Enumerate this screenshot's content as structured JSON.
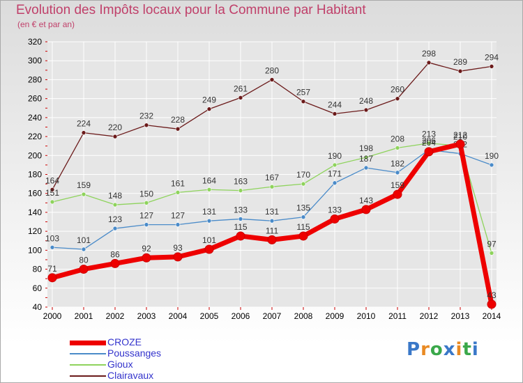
{
  "title": "Evolution des Impôts locaux pour la Commune par Habitant",
  "subtitle": "(en € et par an)",
  "logo": {
    "text": "Proxiti",
    "colors": [
      "#3a78c8",
      "#e98a23",
      "#3aa84a",
      "#3a78c8",
      "#e98a23",
      "#3aa84a",
      "#3a78c8"
    ]
  },
  "colors": {
    "title": "#c0406a",
    "grid": "#ffffff",
    "axis_text": "#000000",
    "legend_text": "#3333cc"
  },
  "chart_data": {
    "type": "line",
    "x": [
      "2000",
      "2001",
      "2002",
      "2003",
      "2004",
      "2005",
      "2006",
      "2007",
      "2008",
      "2009",
      "2010",
      "2011",
      "2012",
      "2013",
      "2014"
    ],
    "ylim": [
      40,
      320
    ],
    "yticks": [
      40,
      60,
      80,
      100,
      120,
      140,
      160,
      180,
      200,
      220,
      240,
      260,
      280,
      300,
      320
    ],
    "grid": true,
    "legend_position": "bottom-left",
    "series": [
      {
        "name": "Clairavaux",
        "color": "#6b1a1a",
        "values": [
          164,
          224,
          220,
          232,
          228,
          249,
          261,
          280,
          257,
          244,
          248,
          260,
          298,
          289,
          294
        ],
        "labels": [
          "164",
          "224",
          "220",
          "232",
          "228",
          "249",
          "261",
          "280",
          "257",
          "244",
          "248",
          "260",
          "298",
          "289",
          "294"
        ]
      },
      {
        "name": "Gioux",
        "color": "#8ed35c",
        "values": [
          151,
          159,
          148,
          150,
          161,
          164,
          163,
          167,
          170,
          190,
          198,
          208,
          213,
          210,
          97
        ],
        "labels": [
          "151",
          "159",
          "148",
          "150",
          "161",
          "164",
          "163",
          "167",
          "170",
          "190",
          "198",
          "208",
          "213",
          "210",
          "97"
        ]
      },
      {
        "name": "Poussanges",
        "color": "#4a8bc9",
        "values": [
          103,
          101,
          123,
          127,
          127,
          131,
          133,
          131,
          135,
          171,
          187,
          182,
          206,
          202,
          190
        ],
        "labels": [
          "103",
          "101",
          "123",
          "127",
          "127",
          "131",
          "133",
          "131",
          "135",
          "171",
          "187",
          "182",
          "206",
          "202",
          "190"
        ]
      },
      {
        "name": "CROZE",
        "color": "#ee0000",
        "values": [
          71,
          80,
          86,
          92,
          93,
          101,
          115,
          111,
          115,
          133,
          143,
          159,
          204,
          212,
          43
        ],
        "labels": [
          "71",
          "80",
          "86",
          "92",
          "93",
          "101",
          "115",
          "111",
          "115",
          "133",
          "143",
          "159",
          "204",
          "212",
          "43"
        ]
      }
    ],
    "legend_order": [
      "CROZE",
      "Poussanges",
      "Gioux",
      "Clairavaux"
    ]
  }
}
